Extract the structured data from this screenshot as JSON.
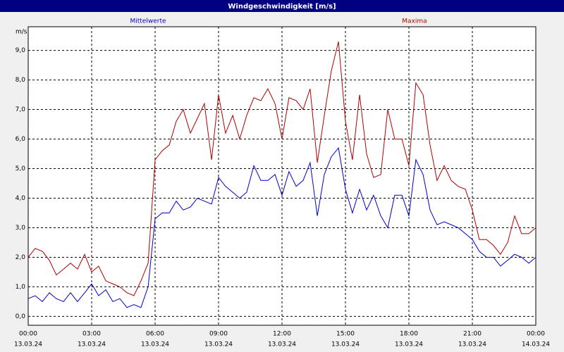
{
  "chart_data": {
    "type": "line",
    "title": "Windgeschwindigkeit [m/s]",
    "y_unit": "m/s",
    "grid": true,
    "x": [
      0,
      0.33,
      0.67,
      1,
      1.33,
      1.67,
      2,
      2.33,
      2.67,
      3,
      3.33,
      3.67,
      4,
      4.33,
      4.67,
      5,
      5.33,
      5.67,
      6,
      6.33,
      6.67,
      7,
      7.33,
      7.67,
      8,
      8.33,
      8.67,
      9,
      9.33,
      9.67,
      10,
      10.33,
      10.67,
      11,
      11.33,
      11.67,
      12,
      12.33,
      12.67,
      13,
      13.33,
      13.67,
      14,
      14.33,
      14.67,
      15,
      15.33,
      15.67,
      16,
      16.33,
      16.67,
      17,
      17.33,
      17.67,
      18,
      18.33,
      18.67,
      19,
      19.33,
      19.67,
      20,
      20.33,
      20.67,
      21,
      21.33,
      21.67,
      22,
      22.33,
      22.67,
      23,
      23.33,
      23.67,
      24
    ],
    "series": [
      {
        "name": "Mittelwerte",
        "color": "#0000cc",
        "values": [
          0.6,
          0.7,
          0.5,
          0.8,
          0.6,
          0.5,
          0.8,
          0.5,
          0.8,
          1.1,
          0.7,
          0.9,
          0.5,
          0.6,
          0.3,
          0.4,
          0.3,
          1.0,
          3.3,
          3.5,
          3.5,
          3.9,
          3.6,
          3.7,
          4.0,
          3.9,
          3.8,
          4.7,
          4.4,
          4.2,
          4.0,
          4.2,
          5.1,
          4.6,
          4.6,
          4.8,
          4.1,
          4.9,
          4.4,
          4.6,
          5.2,
          3.4,
          4.8,
          5.4,
          5.7,
          4.3,
          3.5,
          4.3,
          3.6,
          4.1,
          3.4,
          3.0,
          4.1,
          4.1,
          3.4,
          5.3,
          4.8,
          3.6,
          3.1,
          3.2,
          3.1,
          3.0,
          2.8,
          2.6,
          2.2,
          2.0,
          2.0,
          1.7,
          1.9,
          2.1,
          2.0,
          1.8,
          2.0
        ]
      },
      {
        "name": "Maxima",
        "color": "#b00000",
        "values": [
          2.0,
          2.3,
          2.2,
          1.9,
          1.4,
          1.6,
          1.8,
          1.6,
          2.1,
          1.5,
          1.7,
          1.2,
          1.1,
          1.0,
          0.8,
          0.7,
          1.2,
          1.8,
          5.3,
          5.6,
          5.8,
          6.6,
          7.0,
          6.2,
          6.7,
          7.2,
          5.3,
          7.5,
          6.2,
          6.8,
          6.0,
          6.8,
          7.4,
          7.3,
          7.7,
          7.2,
          6.0,
          7.4,
          7.3,
          7.0,
          7.7,
          5.2,
          6.8,
          8.3,
          9.3,
          6.6,
          5.3,
          7.5,
          5.5,
          4.7,
          4.8,
          7.0,
          6.0,
          6.0,
          5.1,
          7.9,
          7.5,
          5.8,
          4.6,
          5.1,
          4.6,
          4.4,
          4.3,
          3.6,
          2.6,
          2.6,
          2.4,
          2.1,
          2.5,
          3.4,
          2.8,
          2.8,
          3.0
        ]
      }
    ],
    "xlim": [
      0,
      24
    ],
    "xticks": [
      {
        "value": 0,
        "label": "00:00"
      },
      {
        "value": 3,
        "label": "03:00"
      },
      {
        "value": 6,
        "label": "06:00"
      },
      {
        "value": 9,
        "label": "09:00"
      },
      {
        "value": 12,
        "label": "12:00"
      },
      {
        "value": 15,
        "label": "15:00"
      },
      {
        "value": 18,
        "label": "18:00"
      },
      {
        "value": 21,
        "label": "21:00"
      },
      {
        "value": 24,
        "label": "00:00"
      }
    ],
    "xtick_dates": [
      "13.03.24",
      "13.03.24",
      "13.03.24",
      "13.03.24",
      "13.03.24",
      "13.03.24",
      "13.03.24",
      "13.03.24",
      "14.03.24"
    ],
    "ylim": [
      -0.3,
      9.8
    ],
    "yticks": [
      {
        "value": 0,
        "label": "0,0"
      },
      {
        "value": 1,
        "label": "1,0"
      },
      {
        "value": 2,
        "label": "2,0"
      },
      {
        "value": 3,
        "label": "3,0"
      },
      {
        "value": 4,
        "label": "4,0"
      },
      {
        "value": 5,
        "label": "5,0"
      },
      {
        "value": 6,
        "label": "6,0"
      },
      {
        "value": 7,
        "label": "7,0"
      },
      {
        "value": 8,
        "label": "8,0"
      },
      {
        "value": 9,
        "label": "9,0"
      }
    ]
  }
}
